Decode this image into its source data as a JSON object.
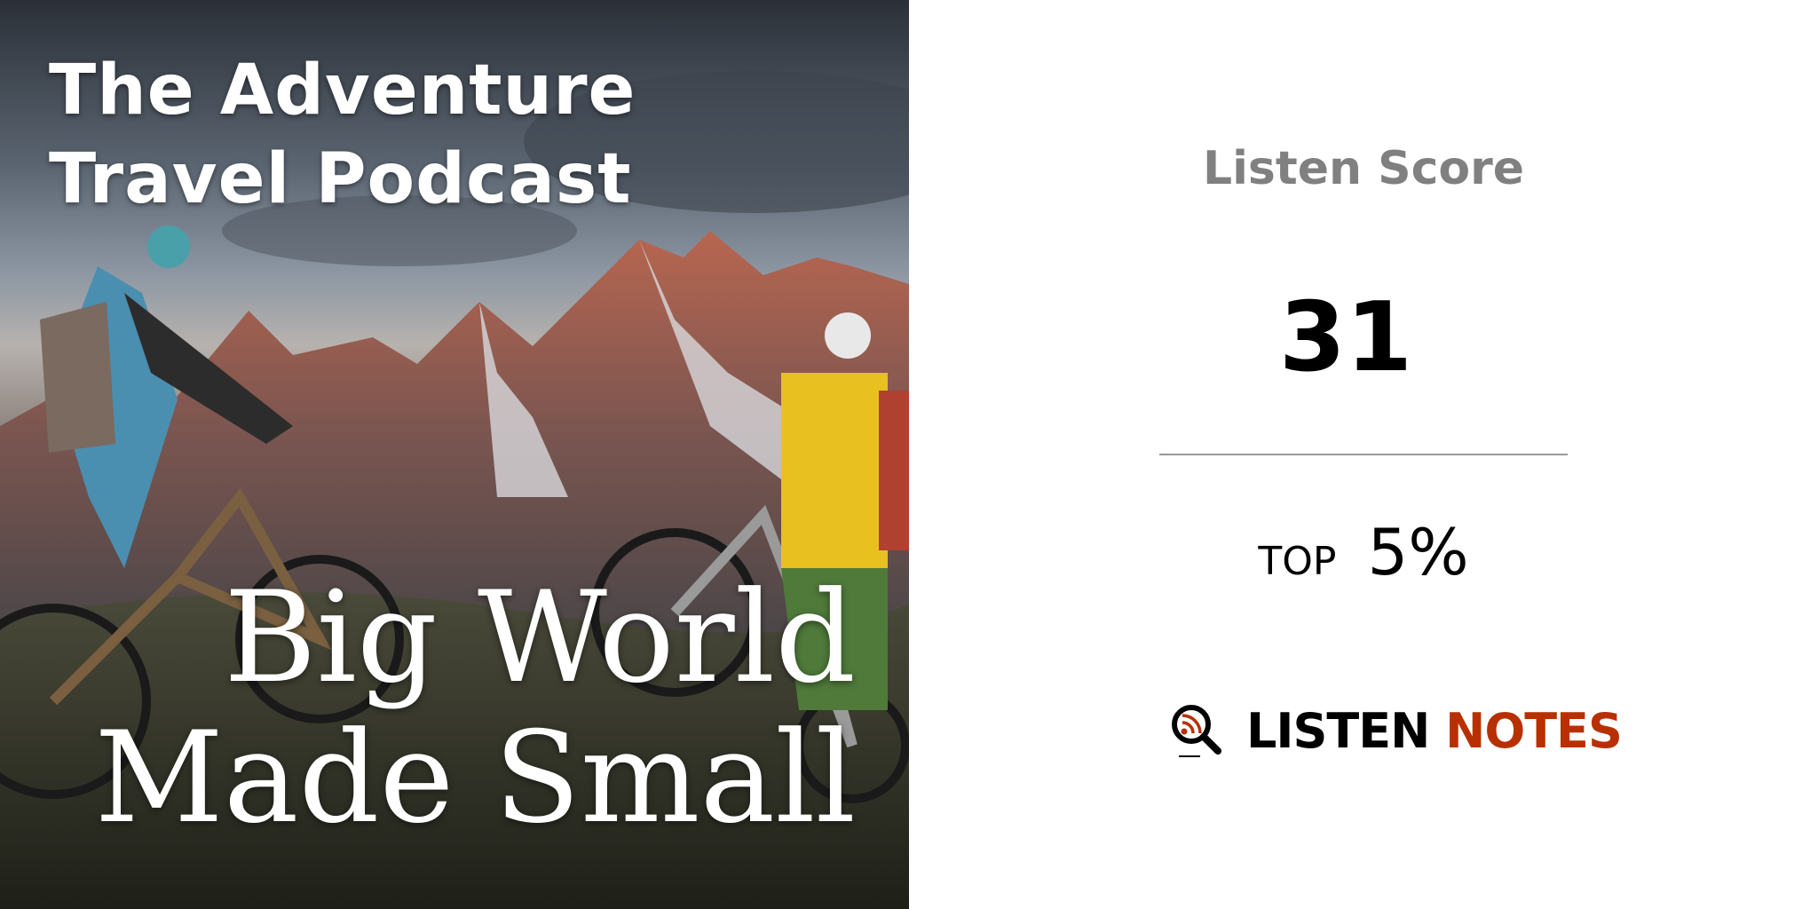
{
  "cover": {
    "title_line1": "The Adventure",
    "title_line2": "Travel Podcast",
    "subtitle_line1": "Big World",
    "subtitle_line2": "Made Small"
  },
  "score": {
    "label": "Listen Score",
    "value": "31",
    "rank_prefix": "TOP",
    "rank_value": "5%"
  },
  "brand": {
    "word1": "LISTEN",
    "word2": "NOTES",
    "icon": "magnifier-rss-icon",
    "color_dark": "#000000",
    "color_accent": "#b83000"
  }
}
